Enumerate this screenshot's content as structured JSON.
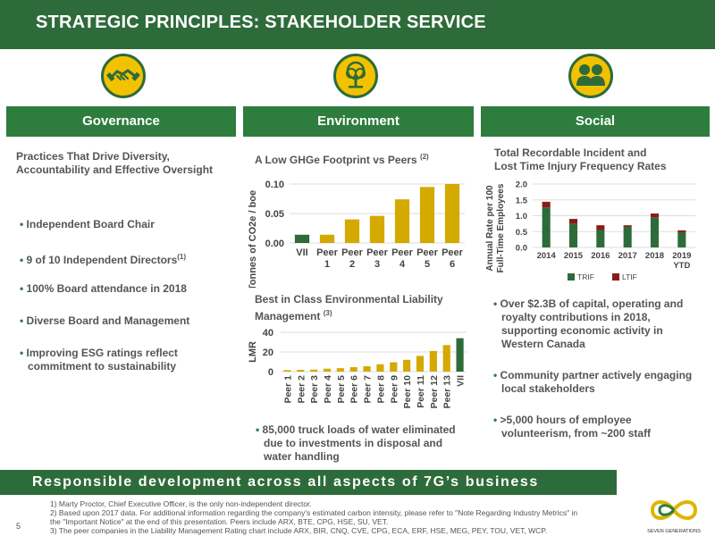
{
  "header": {
    "title": "STRATEGIC PRINCIPLES: STAKEHOLDER SERVICE"
  },
  "pillars": [
    {
      "label": "Governance",
      "icon": "handshake-icon"
    },
    {
      "label": "Environment",
      "icon": "tree-icon"
    },
    {
      "label": "Social",
      "icon": "people-icon"
    }
  ],
  "governance": {
    "heading_line1": "Practices That Drive Diversity,",
    "heading_line2": "Accountability and Effective Oversight",
    "bullets": [
      {
        "text": "Independent Board Chair",
        "sup": ""
      },
      {
        "text": "9 of 10 Independent Directors",
        "sup": "(1)"
      },
      {
        "text": "100% Board attendance in 2018",
        "sup": ""
      },
      {
        "text": "Diverse Board and Management",
        "sup": ""
      },
      {
        "text": "Improving ESG ratings reflect",
        "line2": "commitment to sustainability",
        "sup": ""
      }
    ]
  },
  "environment": {
    "ghg_heading": "A Low GHGe Footprint vs Peers",
    "ghg_sup": "(2)",
    "lmr_heading_line1": "Best in Class Environmental Liability",
    "lmr_heading_line2": "Management",
    "lmr_sup": "(3)",
    "bullet_line1": "85,000 truck loads of water eliminated",
    "bullet_line2": "due to investments in disposal and",
    "bullet_line3": "water handling"
  },
  "social": {
    "heading_line1": "Total Recordable Incident and",
    "heading_line2": "Lost Time Injury Frequency Rates",
    "bullets": [
      {
        "lines": [
          "Over $2.3B of capital, operating and",
          "royalty contributions in 2018,",
          "supporting economic activity in",
          "Western Canada"
        ]
      },
      {
        "lines": [
          "Community partner actively engaging",
          "local stakeholders"
        ]
      },
      {
        "lines": [
          ">5,000 hours of employee",
          "volunteerism, from ~200 staff"
        ]
      }
    ]
  },
  "banner": "Responsible development across all aspects of 7G’s business",
  "footnotes": [
    "1)  Marty Proctor, Chief Executive Officer, is the only non-independent director.",
    "2)  Based upon 2017 data. For additional information regarding the company's estimated carbon intensity, please refer to \"Note Regarding Industry Metrics\" in",
    "      the \"Important Notice\" at the end of this presentation. Peers include ARX, BTE, CPG, HSE, SU, VET.",
    "3)  The peer companies in the Liability Management Rating chart include ARX, BIR, CNQ, CVE, CPG, ECA, ERF, HSE, MEG, PEY, TOU, VET, WCP."
  ],
  "page_number": "5",
  "logo": {
    "line1": "SEVEN GENERATIONS"
  },
  "colors": {
    "dark_green": "#2e6b3a",
    "gold": "#d4a900",
    "red": "#8b1a1a",
    "grid": "#dddddd"
  },
  "chart_data": [
    {
      "type": "bar",
      "categories": [
        "VII",
        "Peer 1",
        "Peer 2",
        "Peer 3",
        "Peer 4",
        "Peer 5",
        "Peer 6"
      ],
      "tick_line1": [
        "VII",
        "Peer",
        "Peer",
        "Peer",
        "Peer",
        "Peer",
        "Peer"
      ],
      "tick_line2": [
        "",
        "1",
        "2",
        "3",
        "4",
        "5",
        "6"
      ],
      "values": [
        0.014,
        0.014,
        0.04,
        0.046,
        0.074,
        0.095,
        0.1
      ],
      "ylabel": "Tonnes of CO2e / boe",
      "ylim": [
        0,
        0.1
      ],
      "yticks": [
        "0.00",
        "0.05",
        "0.10"
      ],
      "highlight": "VII"
    },
    {
      "type": "bar",
      "categories": [
        "Peer 1",
        "Peer 2",
        "Peer 3",
        "Peer 4",
        "Peer 5",
        "Peer 6",
        "Peer 7",
        "Peer 8",
        "Peer 9",
        "Peer 10",
        "Peer 11",
        "Peer 12",
        "Peer 13",
        "VII"
      ],
      "values": [
        1.5,
        1.8,
        2.0,
        3.0,
        3.5,
        4.5,
        5.5,
        7.5,
        9.5,
        12,
        16,
        21,
        27,
        34
      ],
      "ylabel": "LMR",
      "ylim": [
        0,
        40
      ],
      "yticks": [
        "0",
        "20",
        "40"
      ],
      "highlight": "VII"
    },
    {
      "type": "bar",
      "stacked": true,
      "categories": [
        "2014",
        "2015",
        "2016",
        "2017",
        "2018",
        "2019 YTD"
      ],
      "tick_line1": [
        "2014",
        "2015",
        "2016",
        "2017",
        "2018",
        "2019"
      ],
      "tick_line2": [
        "",
        "",
        "",
        "",
        "",
        "YTD"
      ],
      "series": [
        {
          "name": "TRIF",
          "values": [
            1.26,
            0.75,
            0.55,
            0.65,
            0.95,
            0.48
          ]
        },
        {
          "name": "LTIF",
          "values": [
            0.18,
            0.15,
            0.15,
            0.05,
            0.12,
            0.06
          ]
        }
      ],
      "ylabel_line1": "Annual Rate per 100",
      "ylabel_line2": "Full-Time Employees",
      "ylim": [
        0,
        2.0
      ],
      "yticks": [
        "0.0",
        "0.5",
        "1.0",
        "1.5",
        "2.0"
      ],
      "legend": "bottom"
    }
  ]
}
